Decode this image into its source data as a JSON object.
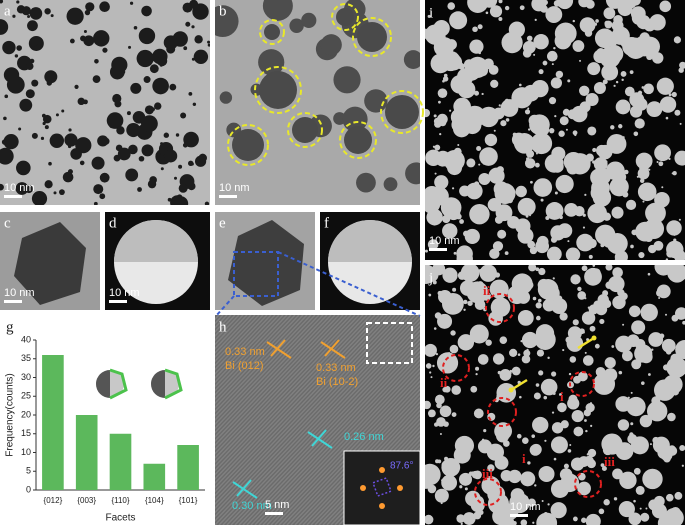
{
  "panels": [
    {
      "label": "a",
      "scale": "10 nm"
    },
    {
      "label": "b",
      "scale": "10 nm"
    },
    {
      "label": "c",
      "scale": "10 nm"
    },
    {
      "label": "d",
      "scale": "10 nm"
    },
    {
      "label": "e"
    },
    {
      "label": "f"
    },
    {
      "label": "g"
    },
    {
      "label": "h",
      "scale": "5 nm"
    },
    {
      "label": "i",
      "scale": "10 nm"
    },
    {
      "label": "j",
      "scale": "10 nm"
    }
  ],
  "h_annotations": [
    "0.33 nm",
    "Bi  (012)",
    "0.33 nm",
    "Bi  (10-2)",
    "0.26 nm",
    "0.30 nm",
    "87.6°"
  ],
  "j_annotations": [
    "ii",
    "ii",
    "i",
    "i",
    "iii",
    "iii"
  ],
  "chart_data": {
    "type": "bar",
    "categories": [
      "{012}",
      "{003}",
      "{110}",
      "{104}",
      "{101}"
    ],
    "values": [
      36,
      20,
      15,
      7,
      12
    ],
    "color": "#5cb85c",
    "ylim": [
      0,
      40
    ],
    "yticks": [
      0,
      5,
      10,
      15,
      20,
      25,
      30,
      35,
      40
    ],
    "ylabel": "Frequency(counts)",
    "xlabel": "Facets"
  }
}
